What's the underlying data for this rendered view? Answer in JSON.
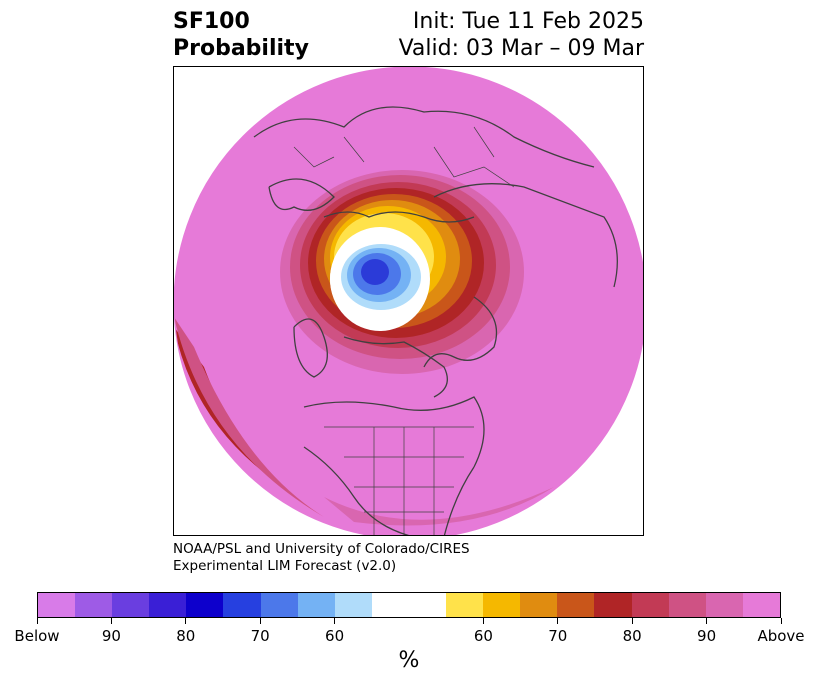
{
  "title": {
    "left_line1": "SF100",
    "left_line2": "Probability",
    "right_line1": "Init: Tue 11 Feb 2025",
    "right_line2": "Valid: 03 Mar – 09 Mar"
  },
  "credit": {
    "line1": "NOAA/PSL and University of Colorado/CIRES",
    "line2": "Experimental LIM Forecast (v2.0)"
  },
  "colorbar": {
    "unit": "%",
    "colors": [
      "#d87be8",
      "#9e5be6",
      "#6a3ee0",
      "#3a1fd6",
      "#0d00cc",
      "#2640e0",
      "#4c78ea",
      "#74b2f4",
      "#b0dcfa",
      "#ffffff",
      "#ffe24a",
      "#f5b800",
      "#e08c10",
      "#c9561a",
      "#b02526",
      "#c23a55",
      "#cf5284",
      "#d966b0",
      "#e67ad8"
    ],
    "widths": [
      1,
      1,
      1,
      1,
      1,
      1,
      1,
      1,
      1,
      2,
      1,
      1,
      1,
      1,
      1,
      1,
      1,
      1,
      1
    ],
    "labels": [
      "Below",
      "90",
      "80",
      "70",
      "60",
      "60",
      "70",
      "80",
      "90",
      "Above"
    ],
    "label_positions": [
      0,
      2,
      4,
      6,
      8,
      12,
      14,
      16,
      18,
      20
    ]
  },
  "map": {
    "base_color": "#e67ad8",
    "land_outline_color": "#404040",
    "probability_colors": {
      "below_strong": "#2b3bd8",
      "below_mid": "#4c78ea",
      "below_weak": "#74b2f4",
      "below_faint": "#b0dcfa",
      "neutral": "#ffffff",
      "above_60": "#ffe24a",
      "above_65": "#f5b800",
      "above_70": "#e08c10",
      "above_75": "#c9561a",
      "above_80": "#b02526",
      "above_85": "#c23a55",
      "above_90": "#cf5284",
      "above_95": "#d966b0"
    }
  }
}
